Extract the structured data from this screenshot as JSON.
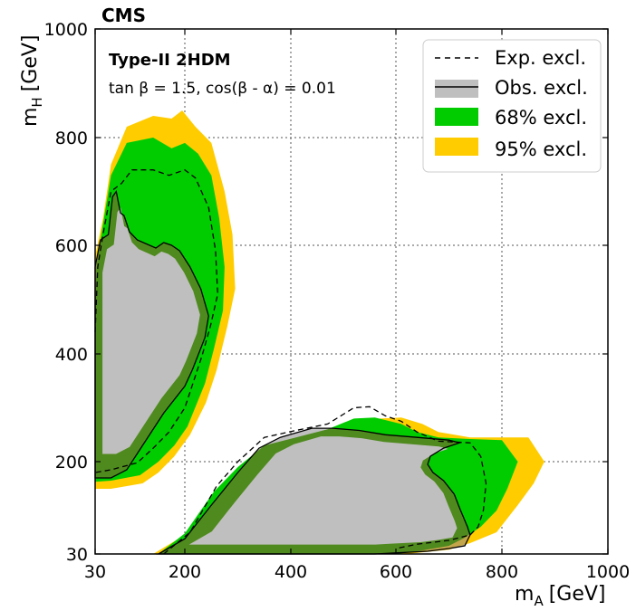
{
  "chart_data": {
    "type": "area",
    "experiment": "CMS",
    "model": "Type-II 2HDM",
    "parameters": "tan β = 1.5, cos(β - α) = 0.01",
    "xlabel": {
      "main": "m",
      "sub": "A",
      "unit": "[GeV]"
    },
    "ylabel": {
      "main": "m",
      "sub": "H",
      "unit": "[GeV]"
    },
    "x_ticks": [
      {
        "value": 30,
        "label": "30"
      },
      {
        "value": 200,
        "label": "200"
      },
      {
        "value": 400,
        "label": "400"
      },
      {
        "value": 600,
        "label": "600"
      },
      {
        "value": 800,
        "label": "800"
      },
      {
        "value": 1000,
        "label": "1000"
      }
    ],
    "y_ticks": [
      {
        "value": 30,
        "label": "30"
      },
      {
        "value": 200,
        "label": "200"
      },
      {
        "value": 400,
        "label": "400"
      },
      {
        "value": 600,
        "label": "600"
      },
      {
        "value": 800,
        "label": "800"
      },
      {
        "value": 1000,
        "label": "1000"
      }
    ],
    "grid": true,
    "legend_position": "top-right",
    "legend": [
      {
        "key": "exp",
        "label": "Exp. excl."
      },
      {
        "key": "obs",
        "label": "Obs. excl."
      },
      {
        "key": "band68",
        "label": "68% excl."
      },
      {
        "key": "band95",
        "label": "95% excl."
      }
    ],
    "colors": {
      "band95": "#ffcc00",
      "band68": "#00cc00",
      "obs_fill": "#bfbfbf",
      "overlap_obs_68": "#4f8a1e",
      "overlap_obs_95": "#c3a54c",
      "line": "#000000"
    },
    "regions": {
      "upper_left": {
        "band95": [
          [
            30,
            420
          ],
          [
            30,
            580
          ],
          [
            45,
            650
          ],
          [
            60,
            750
          ],
          [
            90,
            820
          ],
          [
            140,
            840
          ],
          [
            175,
            835
          ],
          [
            195,
            850
          ],
          [
            220,
            820
          ],
          [
            250,
            790
          ],
          [
            275,
            700
          ],
          [
            290,
            620
          ],
          [
            295,
            520
          ],
          [
            280,
            450
          ],
          [
            260,
            370
          ],
          [
            240,
            310
          ],
          [
            210,
            250
          ],
          [
            180,
            210
          ],
          [
            150,
            180
          ],
          [
            120,
            160
          ],
          [
            60,
            150
          ],
          [
            30,
            150
          ]
        ],
        "band68": [
          [
            30,
            430
          ],
          [
            32,
            560
          ],
          [
            45,
            640
          ],
          [
            60,
            730
          ],
          [
            90,
            790
          ],
          [
            140,
            800
          ],
          [
            175,
            780
          ],
          [
            200,
            790
          ],
          [
            225,
            770
          ],
          [
            250,
            730
          ],
          [
            265,
            650
          ],
          [
            275,
            560
          ],
          [
            272,
            480
          ],
          [
            255,
            410
          ],
          [
            238,
            345
          ],
          [
            205,
            265
          ],
          [
            180,
            230
          ],
          [
            150,
            200
          ],
          [
            115,
            175
          ],
          [
            60,
            165
          ],
          [
            30,
            163
          ]
        ],
        "expected": [
          [
            30,
            440
          ],
          [
            35,
            560
          ],
          [
            45,
            620
          ],
          [
            60,
            700
          ],
          [
            80,
            715
          ],
          [
            100,
            740
          ],
          [
            140,
            740
          ],
          [
            170,
            730
          ],
          [
            200,
            740
          ],
          [
            220,
            725
          ],
          [
            245,
            670
          ],
          [
            258,
            590
          ],
          [
            262,
            510
          ],
          [
            248,
            450
          ],
          [
            232,
            395
          ],
          [
            200,
            300
          ],
          [
            170,
            255
          ],
          [
            140,
            225
          ],
          [
            110,
            198
          ],
          [
            60,
            185
          ],
          [
            30,
            180
          ]
        ],
        "observed": [
          [
            30,
            400
          ],
          [
            30,
            560
          ],
          [
            40,
            610
          ],
          [
            55,
            620
          ],
          [
            63,
            690
          ],
          [
            70,
            700
          ],
          [
            78,
            660
          ],
          [
            85,
            655
          ],
          [
            95,
            625
          ],
          [
            110,
            610
          ],
          [
            145,
            595
          ],
          [
            160,
            605
          ],
          [
            175,
            600
          ],
          [
            190,
            590
          ],
          [
            210,
            560
          ],
          [
            230,
            520
          ],
          [
            245,
            470
          ],
          [
            238,
            430
          ],
          [
            228,
            405
          ],
          [
            214,
            370
          ],
          [
            200,
            340
          ],
          [
            160,
            290
          ],
          [
            120,
            230
          ],
          [
            90,
            185
          ],
          [
            60,
            170
          ],
          [
            30,
            170
          ]
        ]
      },
      "lower_right": {
        "band95": [
          [
            140,
            30
          ],
          [
            200,
            65
          ],
          [
            250,
            130
          ],
          [
            300,
            175
          ],
          [
            360,
            215
          ],
          [
            420,
            230
          ],
          [
            470,
            245
          ],
          [
            520,
            265
          ],
          [
            570,
            280
          ],
          [
            610,
            282
          ],
          [
            650,
            270
          ],
          [
            680,
            255
          ],
          [
            740,
            245
          ],
          [
            800,
            245
          ],
          [
            850,
            245
          ],
          [
            880,
            200
          ],
          [
            860,
            160
          ],
          [
            830,
            120
          ],
          [
            790,
            70
          ],
          [
            740,
            50
          ],
          [
            700,
            38
          ],
          [
            620,
            30
          ]
        ],
        "band68": [
          [
            150,
            30
          ],
          [
            200,
            68
          ],
          [
            255,
            145
          ],
          [
            300,
            190
          ],
          [
            350,
            230
          ],
          [
            410,
            245
          ],
          [
            470,
            260
          ],
          [
            520,
            280
          ],
          [
            560,
            282
          ],
          [
            610,
            270
          ],
          [
            640,
            255
          ],
          [
            680,
            245
          ],
          [
            740,
            242
          ],
          [
            800,
            240
          ],
          [
            830,
            200
          ],
          [
            810,
            150
          ],
          [
            790,
            110
          ],
          [
            760,
            80
          ],
          [
            730,
            60
          ],
          [
            700,
            45
          ],
          [
            640,
            35
          ],
          [
            600,
            30
          ]
        ],
        "expected": [
          [
            160,
            30
          ],
          [
            210,
            70
          ],
          [
            260,
            155
          ],
          [
            300,
            200
          ],
          [
            350,
            245
          ],
          [
            410,
            258
          ],
          [
            470,
            270
          ],
          [
            520,
            300
          ],
          [
            550,
            302
          ],
          [
            580,
            285
          ],
          [
            610,
            275
          ],
          [
            640,
            255
          ],
          [
            680,
            238
          ],
          [
            740,
            235
          ],
          [
            760,
            210
          ],
          [
            770,
            160
          ],
          [
            765,
            110
          ],
          [
            755,
            80
          ],
          [
            740,
            65
          ],
          [
            700,
            55
          ],
          [
            640,
            48
          ],
          [
            600,
            40
          ]
        ],
        "observed": [
          [
            150,
            30
          ],
          [
            200,
            58
          ],
          [
            250,
            120
          ],
          [
            300,
            180
          ],
          [
            340,
            225
          ],
          [
            380,
            245
          ],
          [
            440,
            262
          ],
          [
            480,
            262
          ],
          [
            530,
            258
          ],
          [
            580,
            250
          ],
          [
            640,
            245
          ],
          [
            700,
            240
          ],
          [
            720,
            235
          ],
          [
            690,
            225
          ],
          [
            665,
            210
          ],
          [
            660,
            195
          ],
          [
            670,
            180
          ],
          [
            690,
            165
          ],
          [
            710,
            140
          ],
          [
            720,
            115
          ],
          [
            735,
            80
          ],
          [
            740,
            65
          ],
          [
            730,
            45
          ],
          [
            700,
            40
          ],
          [
            660,
            35
          ],
          [
            600,
            32
          ],
          [
            560,
            30
          ]
        ]
      }
    }
  }
}
